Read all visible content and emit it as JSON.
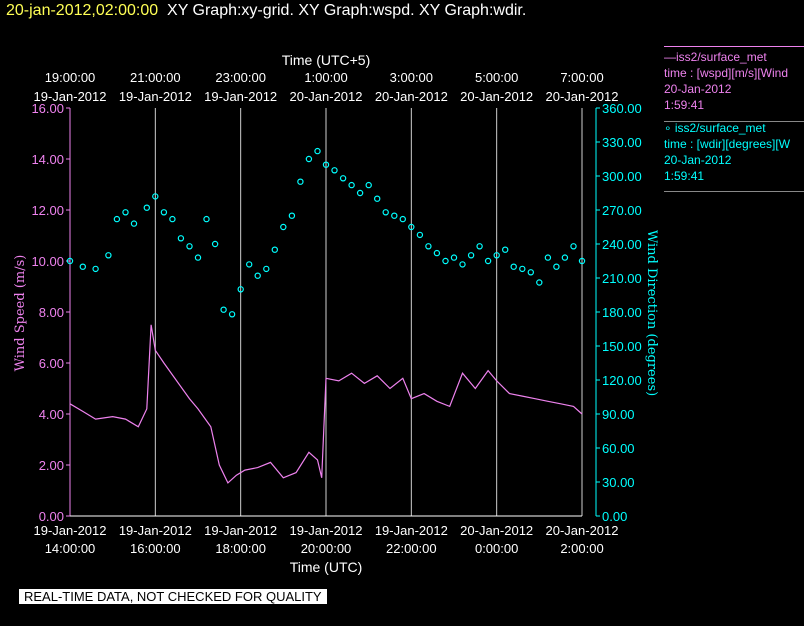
{
  "title": {
    "timestamp": "20-jan-2012,02:00:00",
    "graphs": "XY Graph:xy-grid.  XY Graph:wspd.  XY Graph:wdir."
  },
  "legend": [
    {
      "line1": "—iss2/surface_met",
      "line2": "time : [wspd][m/s][Wind",
      "line3": "20-Jan-2012",
      "line4": "1:59:41",
      "color": "#ee82ee"
    },
    {
      "line1": "∘ iss2/surface_met",
      "line2": "time : [wdir][degrees][W",
      "line3": "20-Jan-2012",
      "line4": "1:59:41",
      "color": "#00ffff"
    }
  ],
  "footer": "REAL-TIME DATA, NOT CHECKED FOR QUALITY",
  "chart_data": {
    "type": "line",
    "top_axis_label": "Time (UTC+5)",
    "top_ticks": [
      {
        "time": "19:00:00",
        "date": "19-Jan-2012"
      },
      {
        "time": "21:00:00",
        "date": "19-Jan-2012"
      },
      {
        "time": "23:00:00",
        "date": "19-Jan-2012"
      },
      {
        "time": "1:00:00",
        "date": "20-Jan-2012"
      },
      {
        "time": "3:00:00",
        "date": "20-Jan-2012"
      },
      {
        "time": "5:00:00",
        "date": "20-Jan-2012"
      },
      {
        "time": "7:00:00",
        "date": "20-Jan-2012"
      }
    ],
    "bottom_axis_label": "Time (UTC)",
    "bottom_ticks": [
      {
        "date": "19-Jan-2012",
        "time": "14:00:00"
      },
      {
        "date": "19-Jan-2012",
        "time": "16:00:00"
      },
      {
        "date": "19-Jan-2012",
        "time": "18:00:00"
      },
      {
        "date": "19-Jan-2012",
        "time": "20:00:00"
      },
      {
        "date": "19-Jan-2012",
        "time": "22:00:00"
      },
      {
        "date": "20-Jan-2012",
        "time": "0:00:00"
      },
      {
        "date": "20-Jan-2012",
        "time": "2:00:00"
      }
    ],
    "x_hours_range": [
      14,
      26
    ],
    "left_axis": {
      "label": "Wind Speed (m/s)",
      "ylim": [
        0,
        16
      ],
      "ticks": [
        "0.00",
        "2.00",
        "4.00",
        "6.00",
        "8.00",
        "10.00",
        "12.00",
        "14.00",
        "16.00"
      ]
    },
    "right_axis": {
      "label": "Wind Direction (degrees)",
      "ylim": [
        0,
        360
      ],
      "ticks": [
        "0.00",
        "30.00",
        "60.00",
        "90.00",
        "120.00",
        "150.00",
        "180.00",
        "210.00",
        "240.00",
        "270.00",
        "300.00",
        "330.00",
        "360.00"
      ]
    },
    "grid": "vertical",
    "series": [
      {
        "name": "iss2/surface_met wspd",
        "axis": "left",
        "style": "line",
        "color": "#ee82ee",
        "x": [
          14.0,
          14.3,
          14.6,
          15.0,
          15.3,
          15.6,
          15.8,
          15.9,
          16.0,
          16.2,
          16.5,
          16.8,
          17.0,
          17.3,
          17.5,
          17.7,
          17.9,
          18.1,
          18.4,
          18.7,
          19.0,
          19.3,
          19.6,
          19.8,
          19.9,
          20.0,
          20.3,
          20.6,
          20.9,
          21.2,
          21.5,
          21.8,
          22.0,
          22.3,
          22.6,
          22.9,
          23.2,
          23.5,
          23.8,
          24.0,
          24.3,
          24.6,
          24.9,
          25.2,
          25.5,
          25.8,
          26.0
        ],
        "values": [
          4.4,
          4.1,
          3.8,
          3.9,
          3.8,
          3.5,
          4.2,
          7.5,
          6.5,
          6.0,
          5.3,
          4.6,
          4.2,
          3.5,
          2.0,
          1.3,
          1.6,
          1.8,
          1.9,
          2.1,
          1.5,
          1.7,
          2.5,
          2.2,
          1.5,
          5.4,
          5.3,
          5.6,
          5.2,
          5.5,
          5.0,
          5.4,
          4.6,
          4.8,
          4.5,
          4.3,
          5.6,
          5.0,
          5.7,
          5.3,
          4.8,
          4.7,
          4.6,
          4.5,
          4.4,
          4.3,
          4.0
        ]
      },
      {
        "name": "iss2/surface_met wdir",
        "axis": "right",
        "style": "circle",
        "color": "#00ffff",
        "x": [
          14.0,
          14.3,
          14.6,
          14.9,
          15.1,
          15.3,
          15.5,
          15.8,
          16.0,
          16.2,
          16.4,
          16.6,
          16.8,
          17.0,
          17.2,
          17.4,
          17.6,
          17.8,
          18.0,
          18.2,
          18.4,
          18.6,
          18.8,
          19.0,
          19.2,
          19.4,
          19.6,
          19.8,
          20.0,
          20.2,
          20.4,
          20.6,
          20.8,
          21.0,
          21.2,
          21.4,
          21.6,
          21.8,
          22.0,
          22.2,
          22.4,
          22.6,
          22.8,
          23.0,
          23.2,
          23.4,
          23.6,
          23.8,
          24.0,
          24.2,
          24.4,
          24.6,
          24.8,
          25.0,
          25.2,
          25.4,
          25.6,
          25.8,
          26.0
        ],
        "values": [
          225,
          220,
          218,
          230,
          262,
          268,
          258,
          272,
          282,
          268,
          262,
          245,
          238,
          228,
          262,
          240,
          182,
          178,
          200,
          222,
          212,
          218,
          235,
          255,
          265,
          295,
          315,
          322,
          310,
          305,
          298,
          292,
          285,
          292,
          280,
          268,
          265,
          262,
          255,
          248,
          238,
          232,
          225,
          228,
          222,
          230,
          238,
          225,
          230,
          235,
          220,
          218,
          215,
          206,
          228,
          220,
          228,
          238,
          225
        ]
      }
    ]
  }
}
